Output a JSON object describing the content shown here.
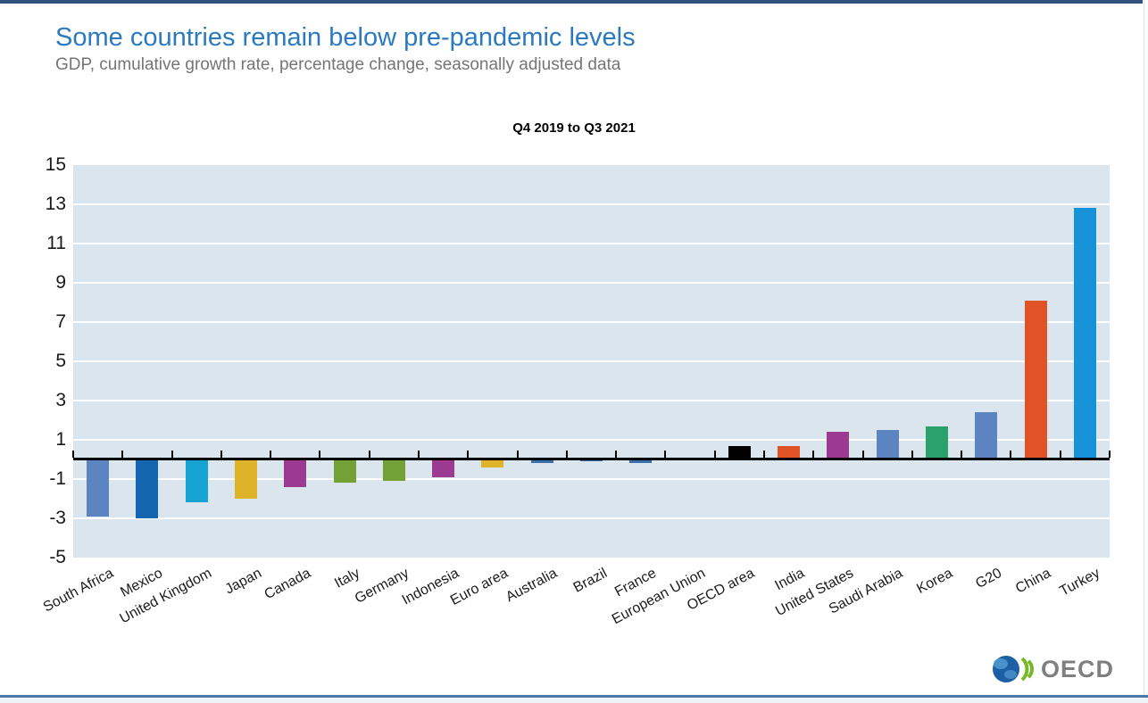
{
  "page": {
    "title": "Some countries remain below pre-pandemic levels",
    "subtitle": "GDP, cumulative growth rate, percentage change, seasonally adjusted data",
    "logo_text": "OECD"
  },
  "chart_data": {
    "type": "bar",
    "title": "Q4 2019 to Q3 2021",
    "categories": [
      "South Africa",
      "Mexico",
      "United Kingdom",
      "Japan",
      "Canada",
      "Italy",
      "Germany",
      "Indonesia",
      "Euro area",
      "Australia",
      "Brazil",
      "France",
      "European Union",
      "OECD area",
      "India",
      "United States",
      "Saudi Arabia",
      "Korea",
      "G20",
      "China",
      "Turkey"
    ],
    "values": [
      -2.9,
      -3.0,
      -2.2,
      -2.0,
      -1.4,
      -1.2,
      -1.1,
      -0.9,
      -0.4,
      -0.2,
      -0.1,
      -0.2,
      0.0,
      0.7,
      0.7,
      1.4,
      1.5,
      1.7,
      2.4,
      8.1,
      12.8
    ],
    "bar_colors": [
      "#5b84c1",
      "#1566b0",
      "#17a3d2",
      "#dfb329",
      "#9c3a92",
      "#73a135",
      "#73a135",
      "#9c3a92",
      "#dfb329",
      "#3a70a6",
      "#3a70a6",
      "#3a70a6",
      "#3a70a6",
      "#000000",
      "#df5326",
      "#9c3a92",
      "#5b84c1",
      "#2ba26c",
      "#5b84c1",
      "#df5326",
      "#1693d8"
    ],
    "ylabel": "",
    "xlabel": "",
    "ylim": [
      -5,
      15
    ],
    "yticks": [
      15,
      13,
      11,
      9,
      7,
      5,
      3,
      1,
      -1,
      -3,
      -5
    ],
    "grid": true,
    "legend": "none",
    "plot_bg": "#dbe5ee",
    "grid_color": "#ffffff"
  },
  "colors": {
    "title": "#2b7ac0",
    "subtitle": "#757575",
    "top_rule": "#31517e",
    "bottom_rule": "#4d79a6",
    "axis": "#000000",
    "logo_text": "#7f7f7f",
    "logo_globe": "#1d5fa5",
    "logo_globe_light": "#4f97cf",
    "logo_chevrons": "#76b82a"
  }
}
